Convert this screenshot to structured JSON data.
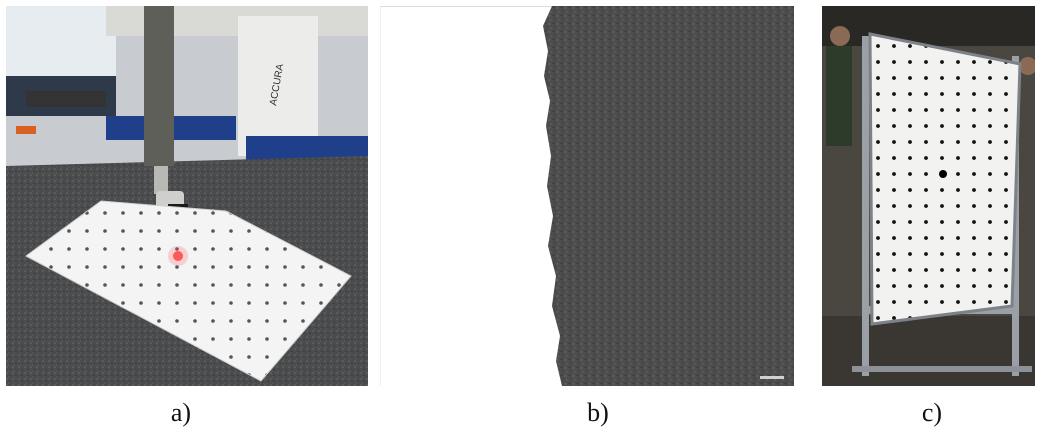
{
  "figure": {
    "panels": [
      {
        "caption": "a)",
        "machine_brand": "ACCURA"
      },
      {
        "caption": "b)"
      },
      {
        "caption": "c)"
      }
    ]
  }
}
